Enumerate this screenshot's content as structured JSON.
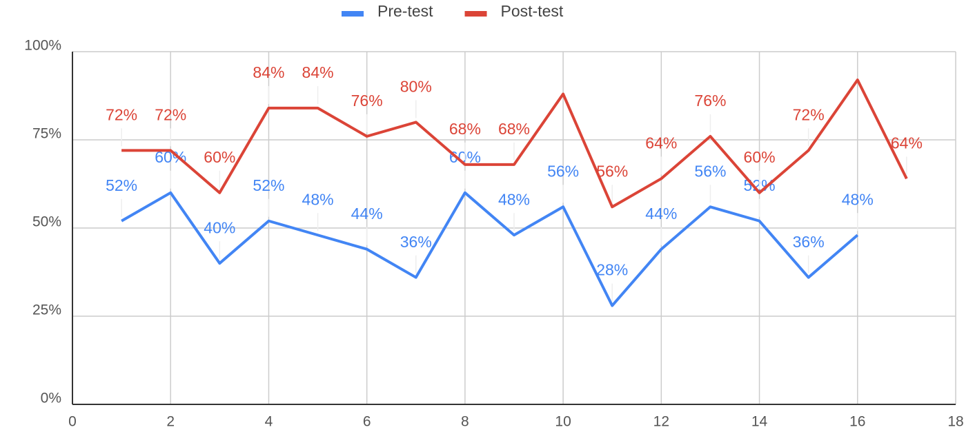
{
  "chart_data": {
    "type": "line",
    "series": [
      {
        "name": "Pre-test",
        "color": "#4285f4",
        "x": [
          1,
          2,
          3,
          4,
          5,
          6,
          7,
          8,
          9,
          10,
          11,
          12,
          13,
          14,
          15,
          16
        ],
        "values": [
          52,
          60,
          40,
          52,
          48,
          44,
          36,
          60,
          48,
          56,
          28,
          44,
          56,
          52,
          36,
          48
        ],
        "value_labels": [
          "52%",
          "60%",
          "40%",
          "52%",
          "48%",
          "44%",
          "36%",
          "60%",
          "48%",
          "56%",
          "28%",
          "44%",
          "56%",
          "52%",
          "36%",
          "48%"
        ]
      },
      {
        "name": "Post-test",
        "color": "#db4437",
        "x": [
          1,
          2,
          3,
          4,
          5,
          6,
          7,
          8,
          9,
          10,
          11,
          12,
          13,
          14,
          15,
          16,
          17
        ],
        "values": [
          72,
          72,
          60,
          84,
          84,
          76,
          80,
          68,
          68,
          88,
          56,
          64,
          76,
          60,
          72,
          92,
          64
        ],
        "value_labels": [
          "72%",
          "72%",
          "60%",
          "84%",
          "84%",
          "76%",
          "80%",
          "68%",
          "68%",
          null,
          "56%",
          "64%",
          "76%",
          "60%",
          "72%",
          null,
          "64%"
        ]
      }
    ],
    "xlim": [
      0,
      18
    ],
    "xticks": [
      0,
      2,
      4,
      6,
      8,
      10,
      12,
      14,
      16,
      18
    ],
    "ylim": [
      0,
      100
    ],
    "yticks": [
      {
        "value": 0,
        "label": "0%"
      },
      {
        "value": 25,
        "label": "25%"
      },
      {
        "value": 50,
        "label": "50%"
      },
      {
        "value": 75,
        "label": "75%"
      },
      {
        "value": 100,
        "label": "100%"
      }
    ],
    "grid": true,
    "legend": "top"
  }
}
